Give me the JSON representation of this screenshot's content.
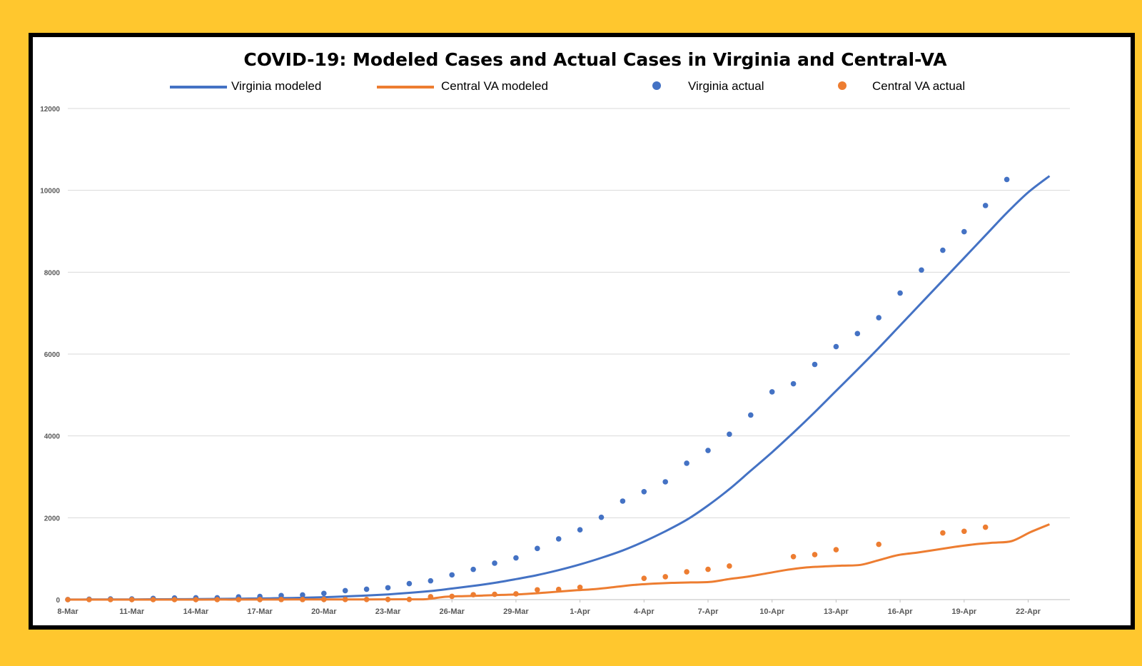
{
  "chart_data": {
    "type": "line",
    "title": "COVID-19: Modeled Cases and Actual Cases in Virginia and Central-VA",
    "xlabel": "",
    "ylabel": "",
    "ylim": [
      0,
      12000
    ],
    "yticks": [
      0,
      2000,
      4000,
      6000,
      8000,
      10000,
      12000
    ],
    "x_start": "8-Mar",
    "x_tick_labels": [
      "8-Mar",
      "11-Mar",
      "14-Mar",
      "17-Mar",
      "20-Mar",
      "23-Mar",
      "26-Mar",
      "29-Mar",
      "1-Apr",
      "4-Apr",
      "7-Apr",
      "10-Apr",
      "13-Apr",
      "16-Apr",
      "19-Apr",
      "22-Apr"
    ],
    "grid": true,
    "legend_position": "top",
    "colors": {
      "virginia": "#4472C4",
      "central": "#ED7D31"
    },
    "series": [
      {
        "name": "Virginia modeled",
        "kind": "line",
        "color": "#4472C4",
        "values": [
          2,
          3,
          4,
          6,
          8,
          10,
          13,
          17,
          22,
          28,
          36,
          46,
          60,
          78,
          100,
          128,
          165,
          210,
          270,
          335,
          410,
          500,
          600,
          720,
          860,
          1020,
          1200,
          1420,
          1670,
          1950,
          2300,
          2700,
          3150,
          3600,
          4080,
          4580,
          5100,
          5620,
          6150,
          6700,
          7250,
          7800,
          8350,
          8900,
          9450,
          9950,
          10350
        ]
      },
      {
        "name": "Central VA modeled",
        "kind": "line",
        "color": "#ED7D31",
        "values": [
          0,
          0,
          0,
          0,
          0,
          0,
          0,
          0,
          1,
          1,
          2,
          2,
          3,
          3,
          4,
          5,
          6,
          7,
          8,
          10,
          70,
          85,
          100,
          115,
          130,
          160,
          195,
          230,
          260,
          310,
          360,
          390,
          410,
          420,
          430,
          500,
          560,
          640,
          720,
          780,
          810,
          830,
          850,
          970,
          1090,
          1150,
          1220,
          1290,
          1350,
          1390,
          1430,
          1650,
          1840
        ]
      },
      {
        "name": "Virginia actual",
        "kind": "scatter",
        "color": "#4472C4",
        "values": [
          2,
          9,
          17,
          17,
          30,
          41,
          45,
          45,
          67,
          77,
          99,
          114,
          152,
          219,
          254,
          290,
          391,
          460,
          604,
          739,
          890,
          1020,
          1250,
          1484,
          1706,
          2012,
          2407,
          2637,
          2878,
          3333,
          3645,
          4042,
          4509,
          5077,
          5274,
          5747,
          6182,
          6500,
          6889,
          7491,
          8053,
          8537,
          8990,
          9630,
          10266
        ]
      },
      {
        "name": "Central VA actual",
        "kind": "scatter",
        "color": "#ED7D31",
        "values": [
          0,
          0,
          0,
          0,
          0,
          0,
          0,
          0,
          0,
          1,
          2,
          2,
          3,
          3,
          4,
          5,
          6,
          70,
          80,
          120,
          130,
          140,
          240,
          250,
          300,
          null,
          null,
          520,
          560,
          680,
          740,
          820,
          null,
          null,
          1050,
          1100,
          1220,
          null,
          1350,
          null,
          null,
          1630,
          1670,
          1770
        ]
      }
    ]
  }
}
